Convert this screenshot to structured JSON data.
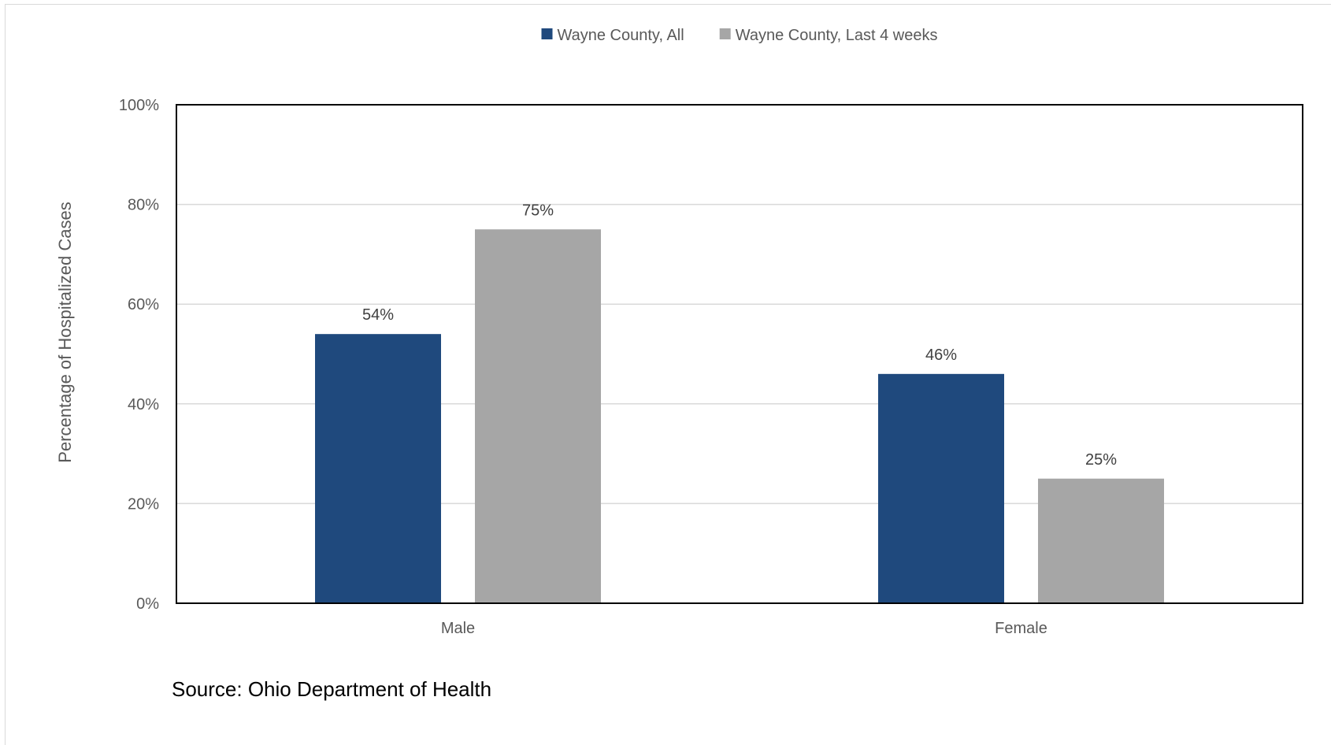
{
  "chart_data": {
    "type": "bar",
    "categories": [
      "Male",
      "Female"
    ],
    "series": [
      {
        "name": "Wayne County, All",
        "color": "#1f497d",
        "values": [
          54,
          46
        ],
        "labels": [
          "54%",
          "46%"
        ]
      },
      {
        "name": "Wayne County, Last 4 weeks",
        "color": "#a6a6a6",
        "values": [
          75,
          25
        ],
        "labels": [
          "75%",
          "25%"
        ]
      }
    ],
    "ylabel": "Percentage of Hospitalized Cases",
    "xlabel": "",
    "ylim": [
      0,
      100
    ],
    "yticks": [
      0,
      20,
      40,
      60,
      80,
      100
    ],
    "ytick_labels": [
      "0%",
      "20%",
      "40%",
      "60%",
      "80%",
      "100%"
    ],
    "grid": true,
    "legend": "top-center"
  },
  "source": "Source: Ohio Department of Health"
}
